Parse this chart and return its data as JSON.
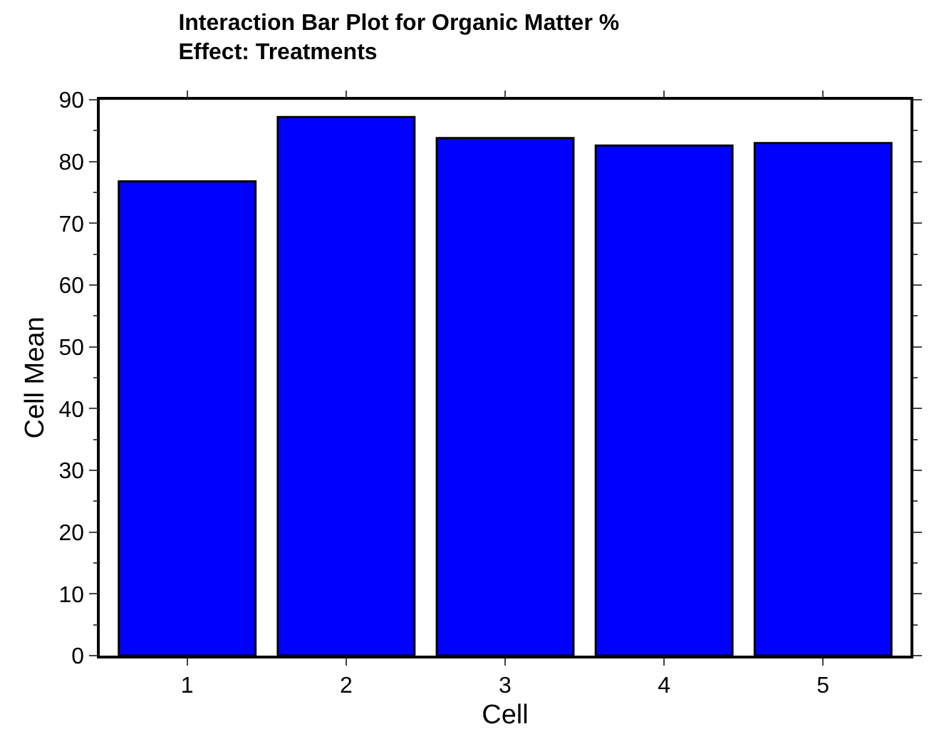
{
  "chart_data": {
    "type": "bar",
    "title": "Interaction Bar Plot for Organic Matter %\nEffect: Treatments",
    "xlabel": "Cell",
    "ylabel": "Cell Mean",
    "categories": [
      "1",
      "2",
      "3",
      "4",
      "5"
    ],
    "values": [
      76.8,
      87.2,
      83.8,
      82.6,
      83.0
    ],
    "color": "#0000ff",
    "ylim": [
      0,
      90
    ],
    "yticks": [
      0,
      10,
      20,
      30,
      40,
      50,
      60,
      70,
      80,
      90
    ]
  }
}
